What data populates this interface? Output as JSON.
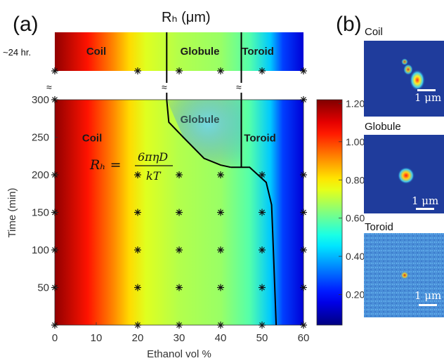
{
  "panel_a_label": "(a)",
  "panel_b_label": "(b)",
  "title": "Rₕ (μm)",
  "top_row_label": "~24 hr.",
  "equation": {
    "lhs": "Rₕ =",
    "numerator": "6πηD",
    "denominator": "kT"
  },
  "chart_data": {
    "type": "heatmap",
    "xlabel": "Ethanol vol %",
    "ylabel": "Time (min)",
    "x_ticks": [
      0,
      10,
      20,
      30,
      40,
      50,
      60
    ],
    "y_ticks": [
      50,
      100,
      150,
      200,
      250,
      300
    ],
    "xlim": [
      0,
      60
    ],
    "ylim": [
      0,
      300
    ],
    "colorbar": {
      "ticks": [
        "1.20",
        "1.00",
        "0.80",
        "0.60",
        "0.40",
        "0.20"
      ],
      "tick_values": [
        1.2,
        1.0,
        0.8,
        0.6,
        0.4,
        0.2
      ],
      "range": [
        0.04,
        1.22
      ],
      "colormap": "jet"
    },
    "regions": [
      {
        "label": "Coil",
        "x": 9,
        "y": 250
      },
      {
        "label": "Globule",
        "x": 35,
        "y": 275
      },
      {
        "label": "Toroid",
        "x": 49.5,
        "y": 250
      }
    ],
    "top_regions": [
      {
        "label": "Coil",
        "x": 10
      },
      {
        "label": "Globule",
        "x": 35
      },
      {
        "label": "Toroid",
        "x": 49
      }
    ],
    "phase_boundaries": [
      {
        "points": [
          [
            27,
            300
          ],
          [
            27.5,
            270
          ],
          [
            31,
            250
          ],
          [
            36,
            222
          ],
          [
            40,
            213
          ],
          [
            42.5,
            210
          ]
        ]
      },
      {
        "points": [
          [
            45,
            300
          ],
          [
            45,
            210
          ]
        ]
      },
      {
        "points": [
          [
            42.5,
            210
          ],
          [
            47,
            210
          ],
          [
            51,
            190
          ],
          [
            52.3,
            160
          ],
          [
            52.6,
            120
          ],
          [
            53,
            60
          ],
          [
            53.4,
            0
          ]
        ]
      }
    ],
    "sample_points": {
      "x": [
        0,
        20,
        30,
        40,
        50,
        60
      ],
      "times": [
        0,
        50,
        100,
        150,
        200,
        300
      ],
      "note_24hr": "one additional row at ~24 hr."
    },
    "field_rh": [
      {
        "x": 0,
        "rh": 1.2
      },
      {
        "x": 8,
        "rh": 1.05
      },
      {
        "x": 14,
        "rh": 0.92
      },
      {
        "x": 18,
        "rh": 0.82
      },
      {
        "x": 22,
        "rh": 0.74
      },
      {
        "x": 30,
        "rh": 0.69
      },
      {
        "x": 40,
        "rh": 0.66
      },
      {
        "x": 47,
        "rh": 0.58
      },
      {
        "x": 52,
        "rh": 0.42
      },
      {
        "x": 55,
        "rh": 0.26
      },
      {
        "x": 60,
        "rh": 0.14
      }
    ]
  },
  "micrographs": [
    {
      "title": "Coil",
      "scale_label": "1 μm"
    },
    {
      "title": "Globule",
      "scale_label": "1 μm"
    },
    {
      "title": "Toroid",
      "scale_label": "1 μm"
    }
  ],
  "colors": {
    "boundary": "#000000",
    "region_label_dark": "#1a1a1a",
    "globule_label": "#2f4f4f",
    "micro_bg_dark": "#1e3a9a",
    "micro_bg_light": "#4a8fd8"
  }
}
